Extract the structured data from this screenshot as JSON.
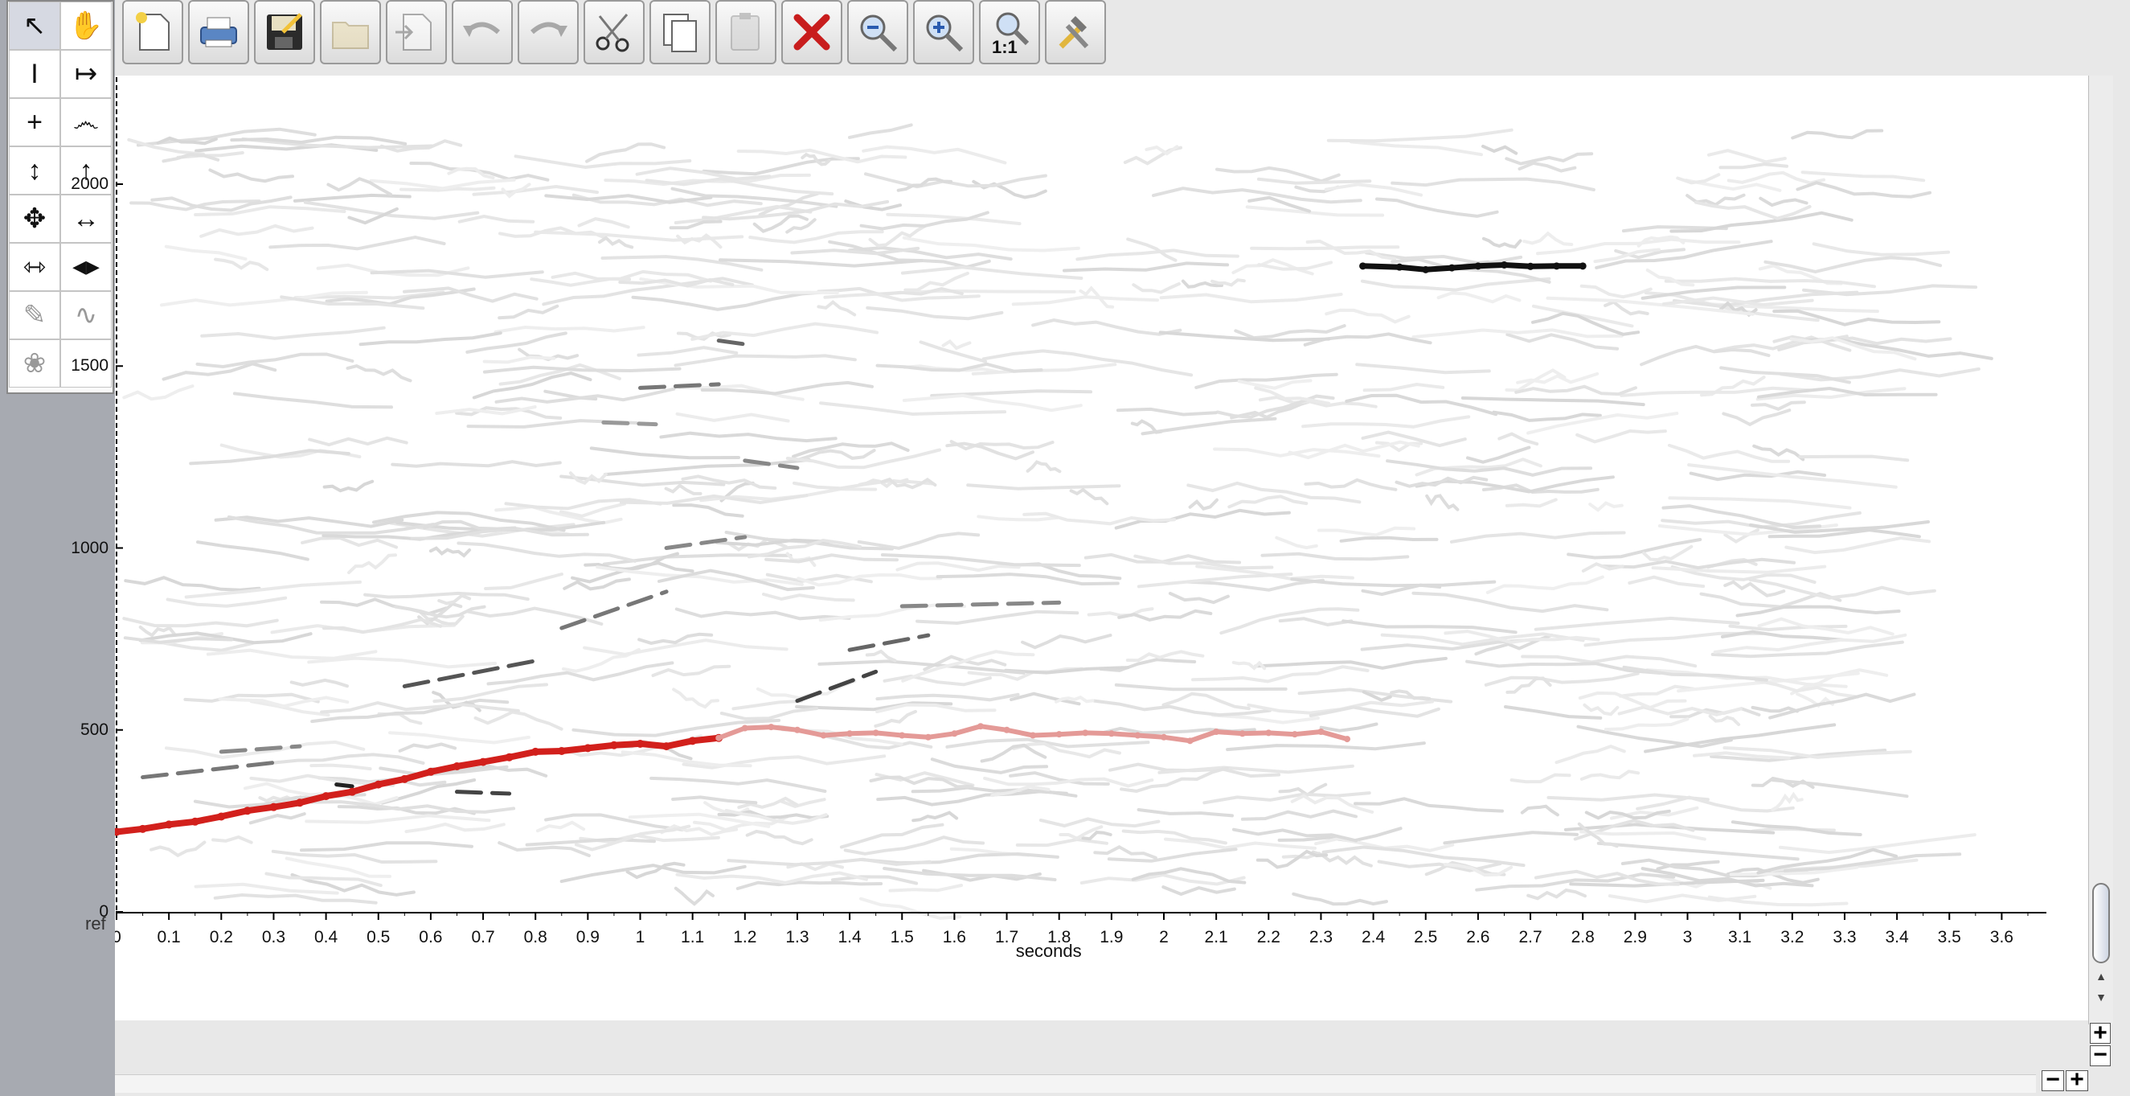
{
  "window": {
    "side_label": "ref"
  },
  "toolbar": {
    "buttons": [
      {
        "id": "new",
        "icon": "new-document-icon"
      },
      {
        "id": "print",
        "icon": "print-icon"
      },
      {
        "id": "save",
        "icon": "save-icon"
      },
      {
        "id": "open",
        "icon": "open-folder-icon",
        "disabled": true
      },
      {
        "id": "import",
        "icon": "import-icon",
        "disabled": true
      },
      {
        "id": "undo",
        "icon": "undo-icon",
        "disabled": true
      },
      {
        "id": "redo",
        "icon": "redo-icon",
        "disabled": true
      },
      {
        "id": "cut",
        "icon": "scissors-icon"
      },
      {
        "id": "copy",
        "icon": "copy-icon"
      },
      {
        "id": "paste",
        "icon": "paste-icon",
        "disabled": true
      },
      {
        "id": "delete",
        "icon": "delete-icon"
      },
      {
        "id": "zoom-out",
        "icon": "zoom-out-icon"
      },
      {
        "id": "zoom-in",
        "icon": "zoom-in-icon"
      },
      {
        "id": "zoom-1-1",
        "icon": "zoom-actual-size-icon",
        "label": "1:1"
      },
      {
        "id": "tools",
        "icon": "tools-icon"
      }
    ]
  },
  "tool_palette": {
    "tools": [
      {
        "id": "select",
        "icon": "arrow-select-icon",
        "glyph": "↖",
        "selected": true
      },
      {
        "id": "hand",
        "icon": "hand-icon",
        "glyph": "✋"
      },
      {
        "id": "ibeam",
        "icon": "ibeam-icon",
        "glyph": "I"
      },
      {
        "id": "range",
        "icon": "horizontal-range-icon",
        "glyph": "↦"
      },
      {
        "id": "crosshair",
        "icon": "crosshair-icon",
        "glyph": "+"
      },
      {
        "id": "lasso",
        "icon": "lasso-icon",
        "glyph": "෴"
      },
      {
        "id": "vertical-resize",
        "icon": "vertical-resize-icon",
        "glyph": "↕"
      },
      {
        "id": "up-arrow",
        "icon": "up-arrow-icon",
        "glyph": "↑"
      },
      {
        "id": "move",
        "icon": "move-icon",
        "glyph": "✥"
      },
      {
        "id": "horizontal-resize",
        "icon": "horizontal-resize-icon",
        "glyph": "↔"
      },
      {
        "id": "squeeze",
        "icon": "squeeze-icon",
        "glyph": "⇿"
      },
      {
        "id": "stretch",
        "icon": "stretch-icon",
        "glyph": "◀▶"
      },
      {
        "id": "pencil",
        "icon": "pencil-icon",
        "glyph": "✎",
        "dim": true
      },
      {
        "id": "curve",
        "icon": "curve-icon",
        "glyph": "∿",
        "dim": true
      },
      {
        "id": "probe",
        "icon": "probe-icon",
        "glyph": "❀",
        "dim": true
      },
      {
        "id": "empty",
        "icon": "",
        "glyph": ""
      }
    ]
  },
  "chart_data": {
    "type": "scatter",
    "xlabel": "seconds",
    "ylabel": "",
    "xlim": [
      0,
      3.67
    ],
    "ylim": [
      0,
      2000
    ],
    "xticks": [
      "0",
      "0.1",
      "0.2",
      "0.3",
      "0.4",
      "0.5",
      "0.6",
      "0.7",
      "0.8",
      "0.9",
      "1",
      "1.1",
      "1.2",
      "1.3",
      "1.4",
      "1.5",
      "1.6",
      "1.7",
      "1.8",
      "1.9",
      "2",
      "2.1",
      "2.2",
      "2.3",
      "2.4",
      "2.5",
      "2.6",
      "2.7",
      "2.8",
      "2.9",
      "3",
      "3.1",
      "3.2",
      "3.3",
      "3.4",
      "3.5",
      "3.6"
    ],
    "yticks": [
      "0",
      "500",
      "1000",
      "1500",
      "2000"
    ],
    "colors": {
      "selected": "#d2201c",
      "selected_faded": "#e49a97",
      "background_tracks": "#e4e4e4",
      "dark_track": "#111111"
    },
    "series": [
      {
        "kind": "selected_pitch_track",
        "x": [
          0,
          0.05,
          0.1,
          0.15,
          0.2,
          0.25,
          0.3,
          0.35,
          0.4,
          0.45,
          0.5,
          0.55,
          0.6,
          0.65,
          0.7,
          0.75,
          0.8,
          0.85,
          0.9,
          0.95,
          1.0,
          1.05,
          1.1,
          1.15
        ],
        "y": [
          220,
          228,
          240,
          248,
          262,
          278,
          288,
          300,
          318,
          330,
          350,
          365,
          385,
          400,
          412,
          425,
          440,
          442,
          450,
          458,
          462,
          455,
          470,
          478
        ]
      },
      {
        "kind": "selected_pitch_track_faded",
        "x": [
          1.15,
          1.2,
          1.25,
          1.3,
          1.35,
          1.4,
          1.45,
          1.5,
          1.55,
          1.6,
          1.65,
          1.7,
          1.75,
          1.8,
          1.85,
          1.9,
          1.95,
          2.0,
          2.05,
          2.1,
          2.15,
          2.2,
          2.25,
          2.3,
          2.35
        ],
        "y": [
          478,
          505,
          508,
          500,
          485,
          490,
          492,
          485,
          480,
          490,
          510,
          500,
          485,
          488,
          492,
          490,
          485,
          480,
          470,
          495,
          490,
          492,
          488,
          495,
          475
        ]
      },
      {
        "kind": "dark_track",
        "x": [
          2.38,
          2.45,
          2.5,
          2.55,
          2.6,
          2.65,
          2.7,
          2.75,
          2.8
        ],
        "y": [
          1775,
          1772,
          1765,
          1770,
          1775,
          1778,
          1774,
          1775,
          1775
        ]
      }
    ],
    "grey_tracks": [
      {
        "x": [
          0.05,
          0.3
        ],
        "y": [
          370,
          410
        ],
        "shade": "#777"
      },
      {
        "x": [
          0.2,
          0.35
        ],
        "y": [
          440,
          455
        ],
        "shade": "#888"
      },
      {
        "x": [
          0.55,
          0.8
        ],
        "y": [
          620,
          690
        ],
        "shade": "#555"
      },
      {
        "x": [
          0.65,
          0.75
        ],
        "y": [
          330,
          325
        ],
        "shade": "#444"
      },
      {
        "x": [
          0.42,
          0.45
        ],
        "y": [
          350,
          345
        ],
        "shade": "#222"
      },
      {
        "x": [
          0.85,
          1.05
        ],
        "y": [
          780,
          880
        ],
        "shade": "#777"
      },
      {
        "x": [
          1.05,
          1.2
        ],
        "y": [
          1000,
          1030
        ],
        "shade": "#888"
      },
      {
        "x": [
          1.2,
          1.3
        ],
        "y": [
          1240,
          1220
        ],
        "shade": "#888"
      },
      {
        "x": [
          1.0,
          1.15
        ],
        "y": [
          1440,
          1450
        ],
        "shade": "#777"
      },
      {
        "x": [
          0.93,
          1.03
        ],
        "y": [
          1345,
          1340
        ],
        "shade": "#999"
      },
      {
        "x": [
          1.15,
          1.2
        ],
        "y": [
          1570,
          1560
        ],
        "shade": "#666"
      },
      {
        "x": [
          1.3,
          1.45
        ],
        "y": [
          580,
          660
        ],
        "shade": "#444"
      },
      {
        "x": [
          1.5,
          1.8
        ],
        "y": [
          840,
          850
        ],
        "shade": "#888"
      },
      {
        "x": [
          1.4,
          1.55
        ],
        "y": [
          720,
          760
        ],
        "shade": "#666"
      }
    ],
    "grid": false,
    "legend": "none"
  }
}
